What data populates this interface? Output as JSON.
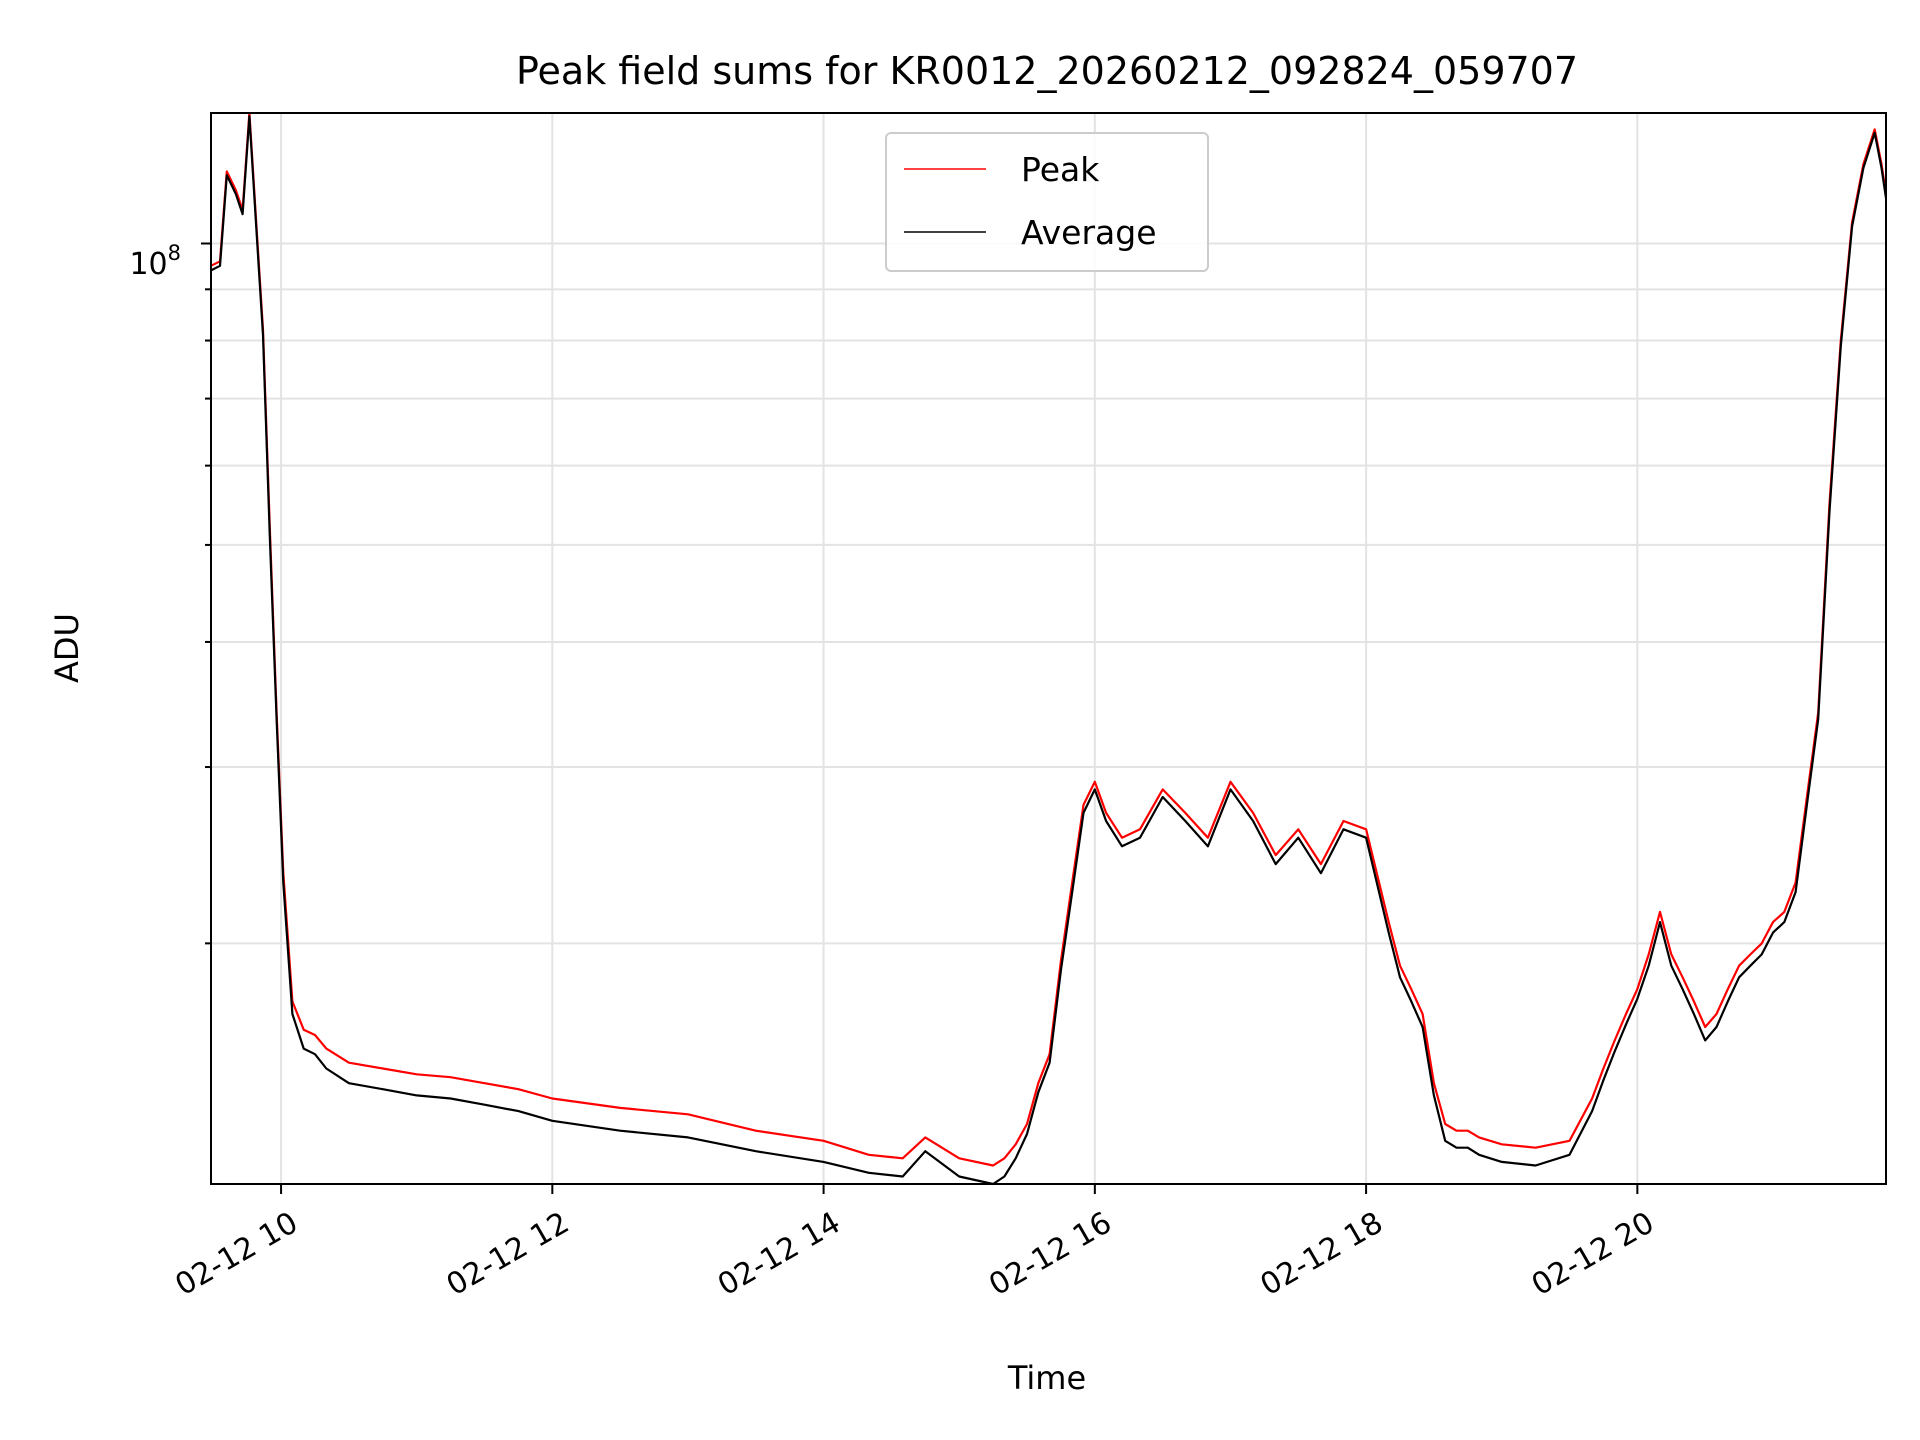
{
  "chart_data": {
    "type": "line",
    "title": "Peak field sums for KR0012_20260212_092824_059707",
    "xlabel": "Time",
    "ylabel": "ADU",
    "yscale": "log",
    "ylim": [
      11500000.0,
      135000000.0
    ],
    "xlim": [
      "2026-02-12 09:29",
      "2026-02-12 21:50"
    ],
    "xticks": [
      "02-12 10",
      "02-12 12",
      "02-12 14",
      "02-12 16",
      "02-12 18",
      "02-12 20"
    ],
    "ytick_base": "10",
    "ytick_exponent": "8",
    "grid": true,
    "legend_position": "upper center",
    "x": [
      "2026-02-12 09:29",
      "2026-02-12 09:33",
      "2026-02-12 09:36",
      "2026-02-12 09:40",
      "2026-02-12 09:43",
      "2026-02-12 09:46",
      "2026-02-12 09:49",
      "2026-02-12 09:52",
      "2026-02-12 09:55",
      "2026-02-12 09:58",
      "2026-02-12 10:01",
      "2026-02-12 10:05",
      "2026-02-12 10:10",
      "2026-02-12 10:15",
      "2026-02-12 10:20",
      "2026-02-12 10:30",
      "2026-02-12 10:45",
      "2026-02-12 11:00",
      "2026-02-12 11:15",
      "2026-02-12 11:30",
      "2026-02-12 11:45",
      "2026-02-12 12:00",
      "2026-02-12 12:30",
      "2026-02-12 13:00",
      "2026-02-12 13:30",
      "2026-02-12 14:00",
      "2026-02-12 14:20",
      "2026-02-12 14:35",
      "2026-02-12 14:45",
      "2026-02-12 15:00",
      "2026-02-12 15:15",
      "2026-02-12 15:20",
      "2026-02-12 15:25",
      "2026-02-12 15:30",
      "2026-02-12 15:35",
      "2026-02-12 15:40",
      "2026-02-12 15:45",
      "2026-02-12 15:50",
      "2026-02-12 15:55",
      "2026-02-12 16:00",
      "2026-02-12 16:05",
      "2026-02-12 16:12",
      "2026-02-12 16:20",
      "2026-02-12 16:30",
      "2026-02-12 16:40",
      "2026-02-12 16:50",
      "2026-02-12 17:00",
      "2026-02-12 17:10",
      "2026-02-12 17:20",
      "2026-02-12 17:30",
      "2026-02-12 17:40",
      "2026-02-12 17:50",
      "2026-02-12 18:00",
      "2026-02-12 18:10",
      "2026-02-12 18:15",
      "2026-02-12 18:20",
      "2026-02-12 18:25",
      "2026-02-12 18:30",
      "2026-02-12 18:35",
      "2026-02-12 18:40",
      "2026-02-12 18:45",
      "2026-02-12 18:50",
      "2026-02-12 19:00",
      "2026-02-12 19:15",
      "2026-02-12 19:30",
      "2026-02-12 19:40",
      "2026-02-12 19:45",
      "2026-02-12 19:50",
      "2026-02-12 19:55",
      "2026-02-12 20:00",
      "2026-02-12 20:05",
      "2026-02-12 20:10",
      "2026-02-12 20:15",
      "2026-02-12 20:20",
      "2026-02-12 20:25",
      "2026-02-12 20:30",
      "2026-02-12 20:35",
      "2026-02-12 20:40",
      "2026-02-12 20:45",
      "2026-02-12 20:50",
      "2026-02-12 20:55",
      "2026-02-12 21:00",
      "2026-02-12 21:05",
      "2026-02-12 21:10",
      "2026-02-12 21:15",
      "2026-02-12 21:20",
      "2026-02-12 21:25",
      "2026-02-12 21:30",
      "2026-02-12 21:35",
      "2026-02-12 21:40",
      "2026-02-12 21:45",
      "2026-02-12 21:48",
      "2026-02-12 21:50"
    ],
    "series": [
      {
        "name": "Peak",
        "color": "#ff0000",
        "values": [
          95000000.0,
          96000000.0,
          118000000.0,
          113000000.0,
          108000000.0,
          135000000.0,
          105000000.0,
          82000000.0,
          52000000.0,
          34000000.0,
          23500000.0,
          17500000.0,
          16400000.0,
          16200000.0,
          15700000.0,
          15200000.0,
          15000000.0,
          14800000.0,
          14700000.0,
          14500000.0,
          14300000.0,
          14000000.0,
          13700000.0,
          13500000.0,
          13000000.0,
          12700000.0,
          12300000.0,
          12200000.0,
          12800000.0,
          12200000.0,
          12000000.0,
          12200000.0,
          12600000.0,
          13200000.0,
          14500000.0,
          15500000.0,
          19200000.0,
          23000000.0,
          27500000.0,
          29000000.0,
          27000000.0,
          25500000.0,
          26000000.0,
          28500000.0,
          27000000.0,
          25500000.0,
          29000000.0,
          27000000.0,
          24500000.0,
          26000000.0,
          24000000.0,
          26500000.0,
          26000000.0,
          21000000.0,
          19000000.0,
          18000000.0,
          17000000.0,
          14500000.0,
          13200000.0,
          13000000.0,
          13000000.0,
          12800000.0,
          12600000.0,
          12500000.0,
          12700000.0,
          14000000.0,
          15000000.0,
          16000000.0,
          17000000.0,
          18000000.0,
          19500000.0,
          21500000.0,
          19500000.0,
          18500000.0,
          17500000.0,
          16500000.0,
          17000000.0,
          18000000.0,
          19000000.0,
          19500000.0,
          20000000.0,
          21000000.0,
          21500000.0,
          23000000.0,
          28000000.0,
          34000000.0,
          55000000.0,
          80000000.0,
          105000000.0,
          120000000.0,
          130000000.0,
          120000000.0,
          112000000.0
        ]
      },
      {
        "name": "Average",
        "color": "#000000",
        "values": [
          94000000.0,
          95000000.0,
          117000000.0,
          112000000.0,
          107000000.0,
          134000000.0,
          104000000.0,
          81000000.0,
          51000000.0,
          33500000.0,
          23000000.0,
          17000000.0,
          15700000.0,
          15500000.0,
          15000000.0,
          14500000.0,
          14300000.0,
          14100000.0,
          14000000.0,
          13800000.0,
          13600000.0,
          13300000.0,
          13000000.0,
          12800000.0,
          12400000.0,
          12100000.0,
          11800000.0,
          11700000.0,
          12400000.0,
          11700000.0,
          11500000.0,
          11700000.0,
          12200000.0,
          12900000.0,
          14200000.0,
          15200000.0,
          18800000.0,
          22500000.0,
          27000000.0,
          28500000.0,
          26500000.0,
          25000000.0,
          25500000.0,
          28000000.0,
          26500000.0,
          25000000.0,
          28500000.0,
          26500000.0,
          24000000.0,
          25500000.0,
          23500000.0,
          26000000.0,
          25500000.0,
          20500000.0,
          18500000.0,
          17500000.0,
          16500000.0,
          14100000.0,
          12700000.0,
          12500000.0,
          12500000.0,
          12300000.0,
          12100000.0,
          12000000.0,
          12300000.0,
          13600000.0,
          14600000.0,
          15600000.0,
          16600000.0,
          17600000.0,
          19000000.0,
          21000000.0,
          19000000.0,
          18000000.0,
          17000000.0,
          16000000.0,
          16500000.0,
          17500000.0,
          18500000.0,
          19000000.0,
          19500000.0,
          20500000.0,
          21000000.0,
          22500000.0,
          27500000.0,
          33500000.0,
          54000000.0,
          79000000.0,
          104000000.0,
          119000000.0,
          129000000.0,
          119000000.0,
          111000000.0
        ]
      }
    ]
  }
}
